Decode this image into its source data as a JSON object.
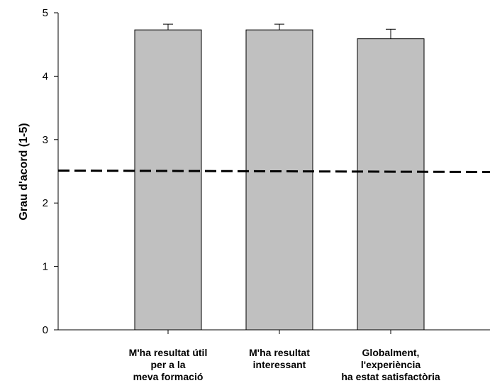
{
  "chart_data": {
    "type": "bar",
    "categories": [
      [
        "M'ha resultat útil",
        "per a la",
        "meva formació"
      ],
      [
        "M'ha resultat",
        "interessant"
      ],
      [
        "Globalment,",
        "l'experiència",
        "ha estat satisfactòria"
      ]
    ],
    "values": [
      4.73,
      4.73,
      4.59
    ],
    "error_bars": [
      0.09,
      0.09,
      0.15
    ],
    "reference_line": 2.5,
    "ylabel": "Grau d'acord (1-5)",
    "xlabel": "",
    "ylim": [
      0,
      5
    ],
    "yticks": [
      0,
      1,
      2,
      3,
      4,
      5
    ],
    "grid": false,
    "colors": {
      "bar": "#c0c0c0",
      "stroke": "#000000",
      "reference": "#000000"
    }
  }
}
